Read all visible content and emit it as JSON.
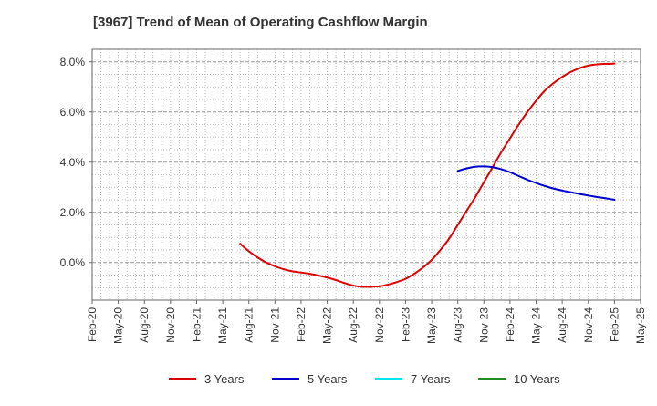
{
  "chart_data": {
    "type": "line",
    "title": "[3967]  Trend of Mean of Operating Cashflow Margin",
    "x_labels": [
      "Feb-20",
      "May-20",
      "Aug-20",
      "Nov-20",
      "Feb-21",
      "May-21",
      "Aug-21",
      "Nov-21",
      "Feb-22",
      "May-22",
      "Aug-22",
      "Nov-22",
      "Feb-23",
      "May-23",
      "Aug-23",
      "Nov-23",
      "Feb-24",
      "May-24",
      "Aug-24",
      "Nov-24",
      "Feb-25",
      "May-25"
    ],
    "y_ticks": [
      0.0,
      2.0,
      4.0,
      6.0,
      8.0
    ],
    "y_tick_labels": [
      "0.0%",
      "2.0%",
      "4.0%",
      "6.0%",
      "8.0%"
    ],
    "ylim": [
      -1.5,
      8.5
    ],
    "grid": true,
    "legend_position": "bottom",
    "series": [
      {
        "name": "3 Years",
        "color": "#dd0000",
        "points": [
          [
            "Jul-21",
            0.75
          ],
          [
            "Aug-21",
            0.45
          ],
          [
            "Sep-21",
            0.2
          ],
          [
            "Oct-21",
            0.0
          ],
          [
            "Nov-21",
            -0.15
          ],
          [
            "Dec-21",
            -0.27
          ],
          [
            "Jan-22",
            -0.35
          ],
          [
            "Feb-22",
            -0.4
          ],
          [
            "Mar-22",
            -0.45
          ],
          [
            "Apr-22",
            -0.52
          ],
          [
            "May-22",
            -0.6
          ],
          [
            "Jun-22",
            -0.7
          ],
          [
            "Jul-22",
            -0.82
          ],
          [
            "Aug-22",
            -0.92
          ],
          [
            "Sep-22",
            -0.97
          ],
          [
            "Oct-22",
            -0.97
          ],
          [
            "Nov-22",
            -0.95
          ],
          [
            "Dec-22",
            -0.88
          ],
          [
            "Jan-23",
            -0.78
          ],
          [
            "Feb-23",
            -0.65
          ],
          [
            "Mar-23",
            -0.45
          ],
          [
            "Apr-23",
            -0.2
          ],
          [
            "May-23",
            0.1
          ],
          [
            "Jun-23",
            0.5
          ],
          [
            "Jul-23",
            0.95
          ],
          [
            "Aug-23",
            1.5
          ],
          [
            "Sep-23",
            2.05
          ],
          [
            "Oct-23",
            2.6
          ],
          [
            "Nov-23",
            3.2
          ],
          [
            "Dec-23",
            3.8
          ],
          [
            "Jan-24",
            4.4
          ],
          [
            "Feb-24",
            4.95
          ],
          [
            "Mar-24",
            5.5
          ],
          [
            "Apr-24",
            6.0
          ],
          [
            "May-24",
            6.45
          ],
          [
            "Jun-24",
            6.85
          ],
          [
            "Jul-24",
            7.15
          ],
          [
            "Aug-24",
            7.4
          ],
          [
            "Sep-24",
            7.6
          ],
          [
            "Oct-24",
            7.75
          ],
          [
            "Nov-24",
            7.85
          ],
          [
            "Dec-24",
            7.9
          ],
          [
            "Jan-25",
            7.92
          ],
          [
            "Feb-25",
            7.93
          ]
        ]
      },
      {
        "name": "5 Years",
        "color": "#0000cc",
        "points": [
          [
            "Aug-23",
            3.65
          ],
          [
            "Sep-23",
            3.75
          ],
          [
            "Oct-23",
            3.82
          ],
          [
            "Nov-23",
            3.83
          ],
          [
            "Dec-23",
            3.8
          ],
          [
            "Jan-24",
            3.72
          ],
          [
            "Feb-24",
            3.6
          ],
          [
            "Mar-24",
            3.45
          ],
          [
            "Apr-24",
            3.3
          ],
          [
            "May-24",
            3.17
          ],
          [
            "Jun-24",
            3.05
          ],
          [
            "Jul-24",
            2.95
          ],
          [
            "Aug-24",
            2.87
          ],
          [
            "Sep-24",
            2.8
          ],
          [
            "Oct-24",
            2.73
          ],
          [
            "Nov-24",
            2.67
          ],
          [
            "Dec-24",
            2.61
          ],
          [
            "Jan-25",
            2.56
          ],
          [
            "Feb-25",
            2.5
          ]
        ]
      },
      {
        "name": "7 Years",
        "color": "#00e5ee",
        "points": []
      },
      {
        "name": "10 Years",
        "color": "#228b22",
        "points": []
      }
    ]
  }
}
